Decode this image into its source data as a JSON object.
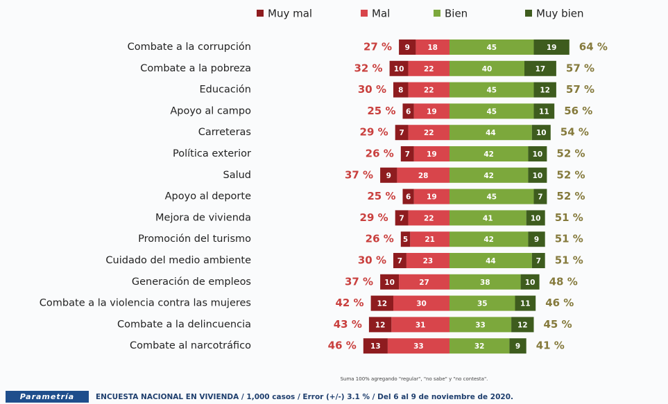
{
  "chart_data": {
    "type": "diverging_bar",
    "categories": [
      "Combate a la corrupción",
      "Combate a la pobreza",
      "Educación",
      "Apoyo al campo",
      "Carreteras",
      "Política exterior",
      "Salud",
      "Apoyo al deporte",
      "Mejora de vivienda",
      "Promoción del turismo",
      "Cuidado del medio ambiente",
      "Generación de empleos",
      "Combate a la violencia contra las mujeres",
      "Combate a la delincuencia",
      "Combate al narcotráfico"
    ],
    "series": [
      {
        "name": "Muy mal",
        "color": "#8e1c1f",
        "values": [
          9,
          10,
          8,
          6,
          7,
          7,
          9,
          6,
          7,
          5,
          7,
          10,
          12,
          12,
          13
        ]
      },
      {
        "name": "Mal",
        "color": "#d8454b",
        "values": [
          18,
          22,
          22,
          19,
          22,
          19,
          28,
          19,
          22,
          21,
          23,
          27,
          30,
          31,
          33
        ]
      },
      {
        "name": "Bien",
        "color": "#7ca83c",
        "values": [
          45,
          40,
          45,
          45,
          44,
          42,
          42,
          45,
          41,
          42,
          44,
          38,
          35,
          33,
          32
        ]
      },
      {
        "name": "Muy bien",
        "color": "#3e5c1e",
        "values": [
          19,
          17,
          12,
          11,
          10,
          10,
          10,
          7,
          10,
          9,
          7,
          10,
          11,
          12,
          9
        ]
      }
    ],
    "negative_totals": {
      "color": "#c9403e",
      "values": [
        27,
        32,
        30,
        25,
        29,
        26,
        37,
        25,
        29,
        26,
        30,
        37,
        42,
        43,
        46
      ],
      "value_labels": [
        "27 %",
        "32 %",
        "30 %",
        "25 %",
        "29 %",
        "26 %",
        "37 %",
        "25 %",
        "29 %",
        "26 %",
        "30 %",
        "37 %",
        "42 %",
        "43 %",
        "46 %"
      ]
    },
    "positive_totals": {
      "color": "#857a3c",
      "values": [
        64,
        57,
        57,
        56,
        54,
        52,
        52,
        52,
        51,
        51,
        51,
        48,
        46,
        45,
        41
      ],
      "value_labels": [
        "64 %",
        "57 %",
        "57 %",
        "56 %",
        "54 %",
        "52 %",
        "52 %",
        "52 %",
        "51 %",
        "51 %",
        "51 %",
        "48 %",
        "46 %",
        "45 %",
        "41 %"
      ]
    },
    "note": "Suma 100% agregando \"regular\", \"no sabe\" y \"no contesta\".",
    "brand": "Parametría",
    "source": "ENCUESTA NACIONAL EN VIVIENDA / 1,000 casos / Error (+/-) 3.1 % / Del 6 al 9 de noviembre de 2020."
  }
}
